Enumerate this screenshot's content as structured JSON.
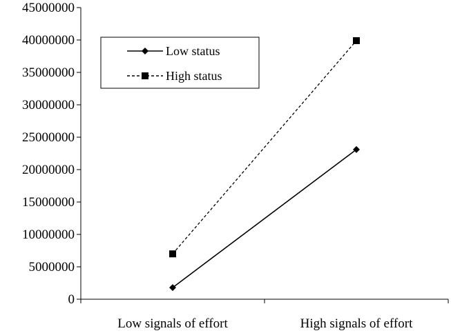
{
  "chart_data": {
    "type": "line",
    "title": "",
    "xlabel": "",
    "ylabel": "",
    "categories": [
      "Low signals of effort",
      "High signals of effort"
    ],
    "ylim": [
      0,
      45000000
    ],
    "yticks": [
      "0",
      "5000000",
      "10000000",
      "15000000",
      "20000000",
      "25000000",
      "30000000",
      "35000000",
      "40000000",
      "45000000"
    ],
    "grid": false,
    "legend_position": "top-left",
    "series": [
      {
        "name": "Low status",
        "values": [
          1800000,
          23100000
        ],
        "line_style": "solid",
        "marker": "diamond",
        "color": "#000000"
      },
      {
        "name": "High status",
        "values": [
          7000000,
          39900000
        ],
        "line_style": "dashed",
        "marker": "square",
        "color": "#000000"
      }
    ]
  }
}
